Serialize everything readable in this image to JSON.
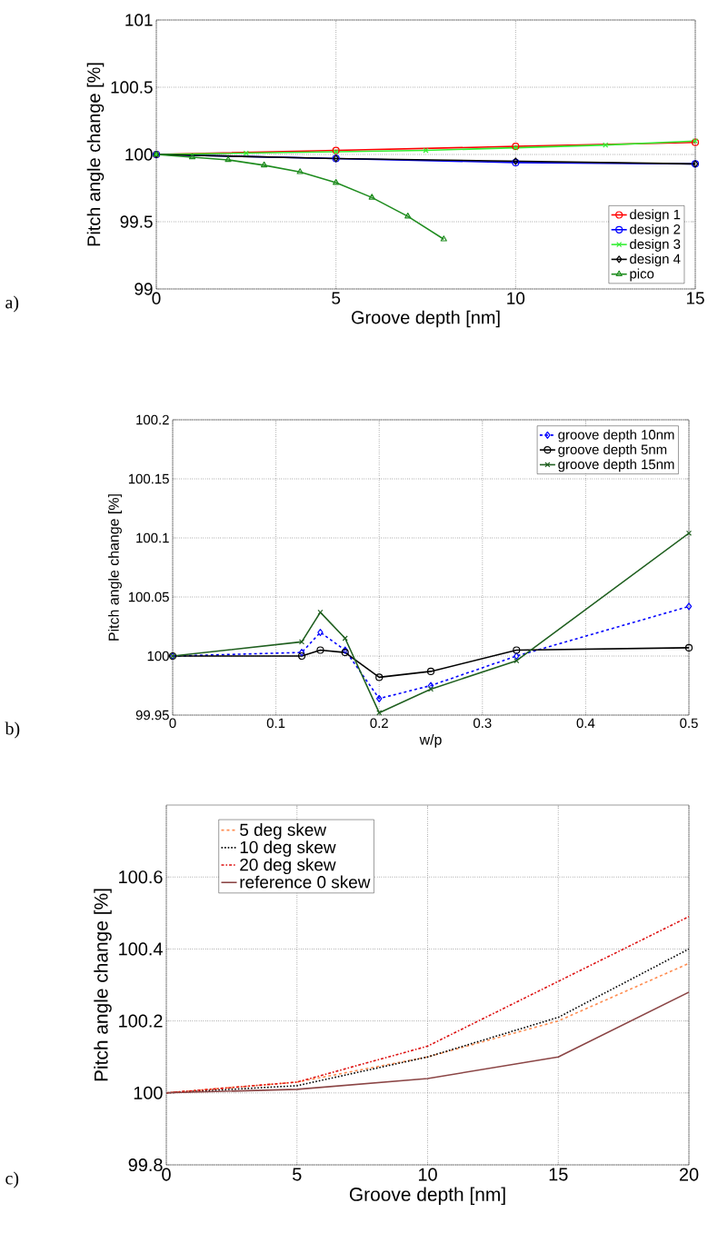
{
  "chart_data": [
    {
      "type": "line",
      "xlabel": "Groove depth [nm]",
      "ylabel": "Pitch angle change [%]",
      "xlim": [
        0,
        15
      ],
      "ylim": [
        99,
        101
      ],
      "xticks": [
        0,
        5,
        10,
        15
      ],
      "yticks": [
        99,
        99.5,
        100,
        100.5,
        101
      ],
      "grid": true,
      "legend": "bottom right",
      "annotations": [
        "a)"
      ],
      "series": [
        {
          "name": "design 1",
          "color": "#ff0000",
          "marker": "circle",
          "x": [
            0,
            5,
            10,
            15
          ],
          "values": [
            100,
            100.03,
            100.06,
            100.09
          ]
        },
        {
          "name": "design 2",
          "color": "#0000ff",
          "marker": "circle",
          "x": [
            0,
            5,
            10,
            15
          ],
          "values": [
            100,
            99.97,
            99.94,
            99.93
          ]
        },
        {
          "name": "design 3",
          "color": "#33ee33",
          "marker": "cross",
          "x": [
            0,
            2.5,
            5,
            7.5,
            10,
            12.5,
            15
          ],
          "values": [
            100,
            100.01,
            100.02,
            100.03,
            100.05,
            100.07,
            100.1
          ]
        },
        {
          "name": "design 4",
          "color": "#000000",
          "marker": "diamond",
          "x": [
            0,
            5,
            10,
            15
          ],
          "values": [
            100,
            99.97,
            99.95,
            99.93
          ]
        },
        {
          "name": "pico",
          "color": "#1e8c1e",
          "marker": "triangle",
          "x": [
            0,
            1,
            2,
            3,
            4,
            5,
            6,
            7,
            8
          ],
          "values": [
            100,
            99.98,
            99.96,
            99.92,
            99.87,
            99.79,
            99.68,
            99.54,
            99.37
          ]
        }
      ]
    },
    {
      "type": "line",
      "xlabel": "w/p",
      "ylabel": "Pitch angle change [%]",
      "xlim": [
        0,
        0.5
      ],
      "ylim": [
        99.95,
        100.2
      ],
      "xticks": [
        0,
        0.1,
        0.2,
        0.3,
        0.4,
        0.5
      ],
      "yticks": [
        99.95,
        100,
        100.05,
        100.1,
        100.15,
        100.2
      ],
      "grid": true,
      "legend": "top right",
      "annotations": [
        "b)"
      ],
      "series": [
        {
          "name": "groove depth 10nm",
          "color": "#0000ff",
          "marker": "diamond",
          "line_style": "dashed",
          "x": [
            0,
            0.125,
            0.143,
            0.167,
            0.2,
            0.25,
            0.333,
            0.5
          ],
          "values": [
            100,
            100.003,
            100.02,
            100.005,
            99.964,
            99.975,
            100.0,
            100.042
          ]
        },
        {
          "name": "groove depth 5nm",
          "color": "#000000",
          "marker": "circle",
          "line_style": "solid",
          "x": [
            0,
            0.125,
            0.143,
            0.167,
            0.2,
            0.25,
            0.333,
            0.5
          ],
          "values": [
            100,
            100.0,
            100.005,
            100.003,
            99.982,
            99.987,
            100.005,
            100.007
          ]
        },
        {
          "name": "groove depth 15nm",
          "color": "#1f5f1f",
          "marker": "cross",
          "line_style": "solid",
          "x": [
            0,
            0.125,
            0.143,
            0.167,
            0.2,
            0.25,
            0.333,
            0.5
          ],
          "values": [
            100,
            100.012,
            100.037,
            100.015,
            99.952,
            99.972,
            99.996,
            100.104
          ]
        }
      ]
    },
    {
      "type": "line",
      "xlabel": "Groove depth [nm]",
      "ylabel": "Pitch angle change [%]",
      "xlim": [
        0,
        20
      ],
      "ylim": [
        99.8,
        100.8
      ],
      "xticks": [
        0,
        5,
        10,
        15,
        20
      ],
      "yticks": [
        99.8,
        100,
        100.2,
        100.4,
        100.6
      ],
      "grid": true,
      "legend": "top left",
      "annotations": [
        "c)"
      ],
      "series": [
        {
          "name": "5 deg skew",
          "color": "#ff8c50",
          "line_style": "dashed",
          "x": [
            0,
            5,
            10,
            15,
            20
          ],
          "values": [
            100,
            100.03,
            100.1,
            100.2,
            100.36
          ]
        },
        {
          "name": "10 deg skew",
          "color": "#000000",
          "line_style": "dotted",
          "x": [
            0,
            5,
            10,
            15,
            20
          ],
          "values": [
            100,
            100.02,
            100.1,
            100.21,
            100.4
          ]
        },
        {
          "name": "20 deg skew",
          "color": "#dd1111",
          "line_style": "dashdot",
          "x": [
            0,
            5,
            10,
            15,
            20
          ],
          "values": [
            100,
            100.03,
            100.13,
            100.31,
            100.49
          ]
        },
        {
          "name": "reference 0 skew",
          "color": "#8b4545",
          "line_style": "solid",
          "x": [
            0,
            5,
            10,
            15,
            20
          ],
          "values": [
            100,
            100.01,
            100.04,
            100.1,
            100.28
          ]
        }
      ]
    }
  ]
}
